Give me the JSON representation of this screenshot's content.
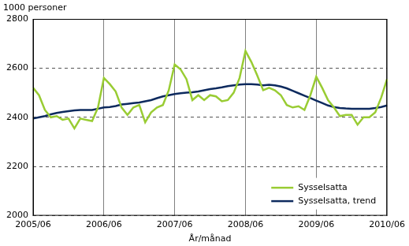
{
  "chart_data": {
    "type": "line",
    "ylabel": "1000 personer",
    "xlabel": "År/månad",
    "categories": [
      "2005/06",
      null,
      null,
      null,
      null,
      null,
      null,
      null,
      null,
      null,
      null,
      null,
      "2006/06",
      null,
      null,
      null,
      null,
      null,
      null,
      null,
      null,
      null,
      null,
      null,
      "2007/06",
      null,
      null,
      null,
      null,
      null,
      null,
      null,
      null,
      null,
      null,
      null,
      "2008/06",
      null,
      null,
      null,
      null,
      null,
      null,
      null,
      null,
      null,
      null,
      null,
      "2009/06",
      null,
      null,
      null,
      null,
      null,
      null,
      null,
      null,
      null,
      null,
      null,
      "2010/06"
    ],
    "series": [
      {
        "name": "Sysselsatta",
        "color": "#99cc33",
        "values": [
          2520,
          2490,
          2430,
          2400,
          2405,
          2390,
          2395,
          2355,
          2395,
          2390,
          2385,
          2440,
          2560,
          2535,
          2505,
          2440,
          2410,
          2440,
          2450,
          2380,
          2420,
          2440,
          2450,
          2510,
          2615,
          2595,
          2555,
          2470,
          2490,
          2470,
          2490,
          2485,
          2465,
          2470,
          2500,
          2560,
          2670,
          2625,
          2570,
          2510,
          2520,
          2510,
          2490,
          2450,
          2440,
          2445,
          2430,
          2490,
          2565,
          2520,
          2470,
          2440,
          2405,
          2410,
          2410,
          2370,
          2400,
          2400,
          2420,
          2480,
          2555
        ]
      },
      {
        "name": "Sysselsatta, trend",
        "color": "#0d2a5e",
        "values": [
          2395,
          2400,
          2405,
          2412,
          2418,
          2422,
          2425,
          2428,
          2430,
          2430,
          2430,
          2435,
          2440,
          2442,
          2446,
          2452,
          2455,
          2458,
          2460,
          2465,
          2470,
          2478,
          2485,
          2490,
          2495,
          2498,
          2500,
          2502,
          2505,
          2510,
          2515,
          2518,
          2522,
          2527,
          2530,
          2533,
          2535,
          2535,
          2533,
          2530,
          2532,
          2530,
          2525,
          2518,
          2508,
          2498,
          2488,
          2478,
          2468,
          2458,
          2448,
          2442,
          2438,
          2436,
          2435,
          2435,
          2435,
          2435,
          2438,
          2442,
          2448
        ]
      }
    ],
    "ylim": [
      2000,
      2800
    ],
    "yticks": [
      2000,
      2200,
      2400,
      2600,
      2800
    ],
    "grid": true,
    "legend": "lower right"
  }
}
